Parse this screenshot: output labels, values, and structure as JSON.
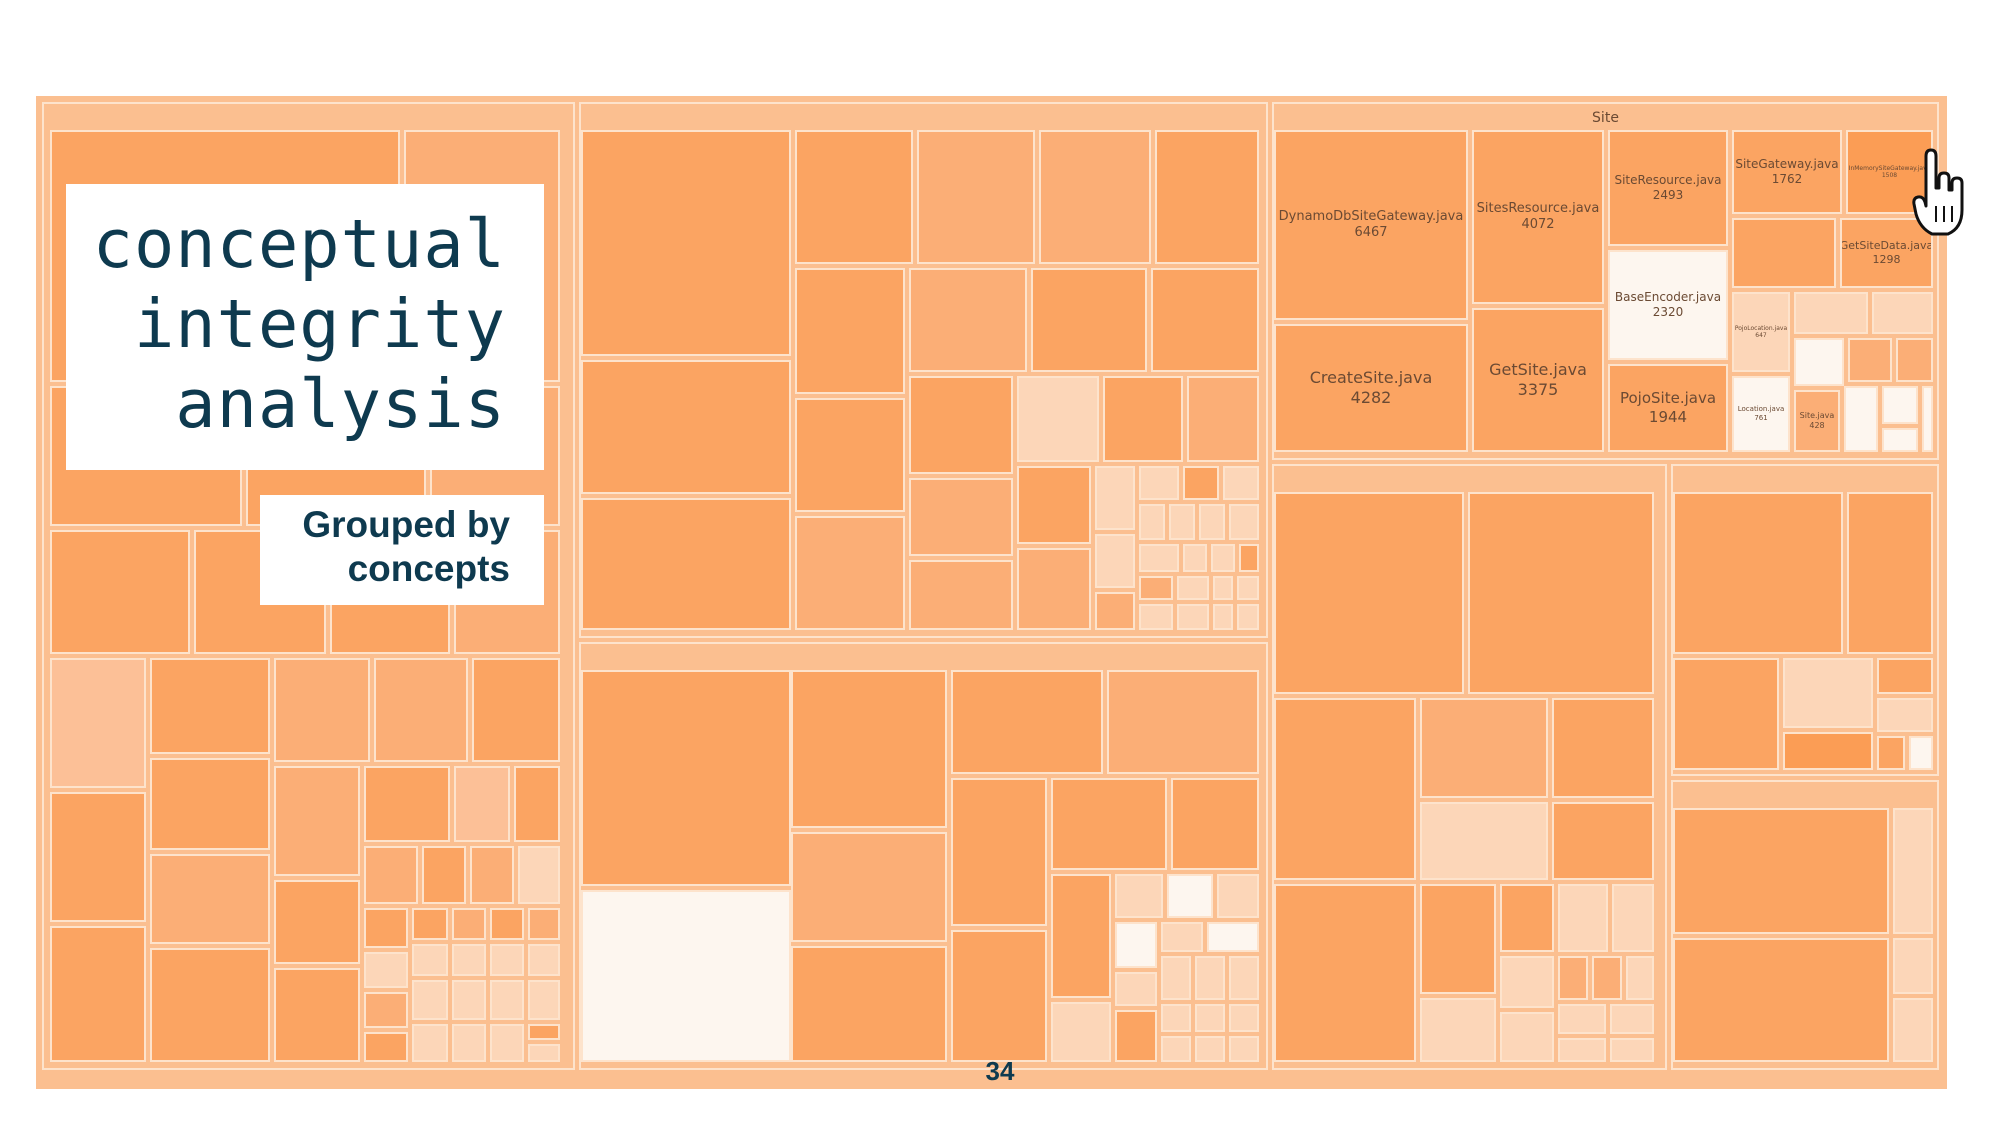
{
  "slide": {
    "title_lines": [
      "conceptual",
      "integrity",
      "analysis"
    ],
    "subtitle_lines": [
      "Grouped by",
      "concepts"
    ],
    "page_number": "34"
  },
  "treemap": {
    "focus_group": {
      "label": "Site",
      "files": [
        {
          "name": "DynamoDbSiteGateway.java",
          "value": "6467"
        },
        {
          "name": "SitesResource.java",
          "value": "4072"
        },
        {
          "name": "SiteResource.java",
          "value": "2493"
        },
        {
          "name": "SiteGateway.java",
          "value": "1762"
        },
        {
          "name": "InMemorySiteGateway.java",
          "value": "1508"
        },
        {
          "name": "BaseEncoder.java",
          "value": "2320"
        },
        {
          "name": "GetSiteData.java",
          "value": "1298"
        },
        {
          "name": "CreateSite.java",
          "value": "4282"
        },
        {
          "name": "GetSite.java",
          "value": "3375"
        },
        {
          "name": "PojoSite.java",
          "value": "1944"
        },
        {
          "name": "PojoLocation.java",
          "value": "647"
        },
        {
          "name": "Location.java",
          "value": "761"
        },
        {
          "name": "Site.java",
          "value": "428"
        }
      ]
    },
    "colors": {
      "background": "#fbbf90",
      "border": "#fde3cc",
      "cell_dark": "#fba462",
      "cell_medium": "#fbae76",
      "cell_light": "#fcd6b8",
      "cell_pale": "#fdf6ef",
      "title_text": "#0e3a4f"
    }
  }
}
